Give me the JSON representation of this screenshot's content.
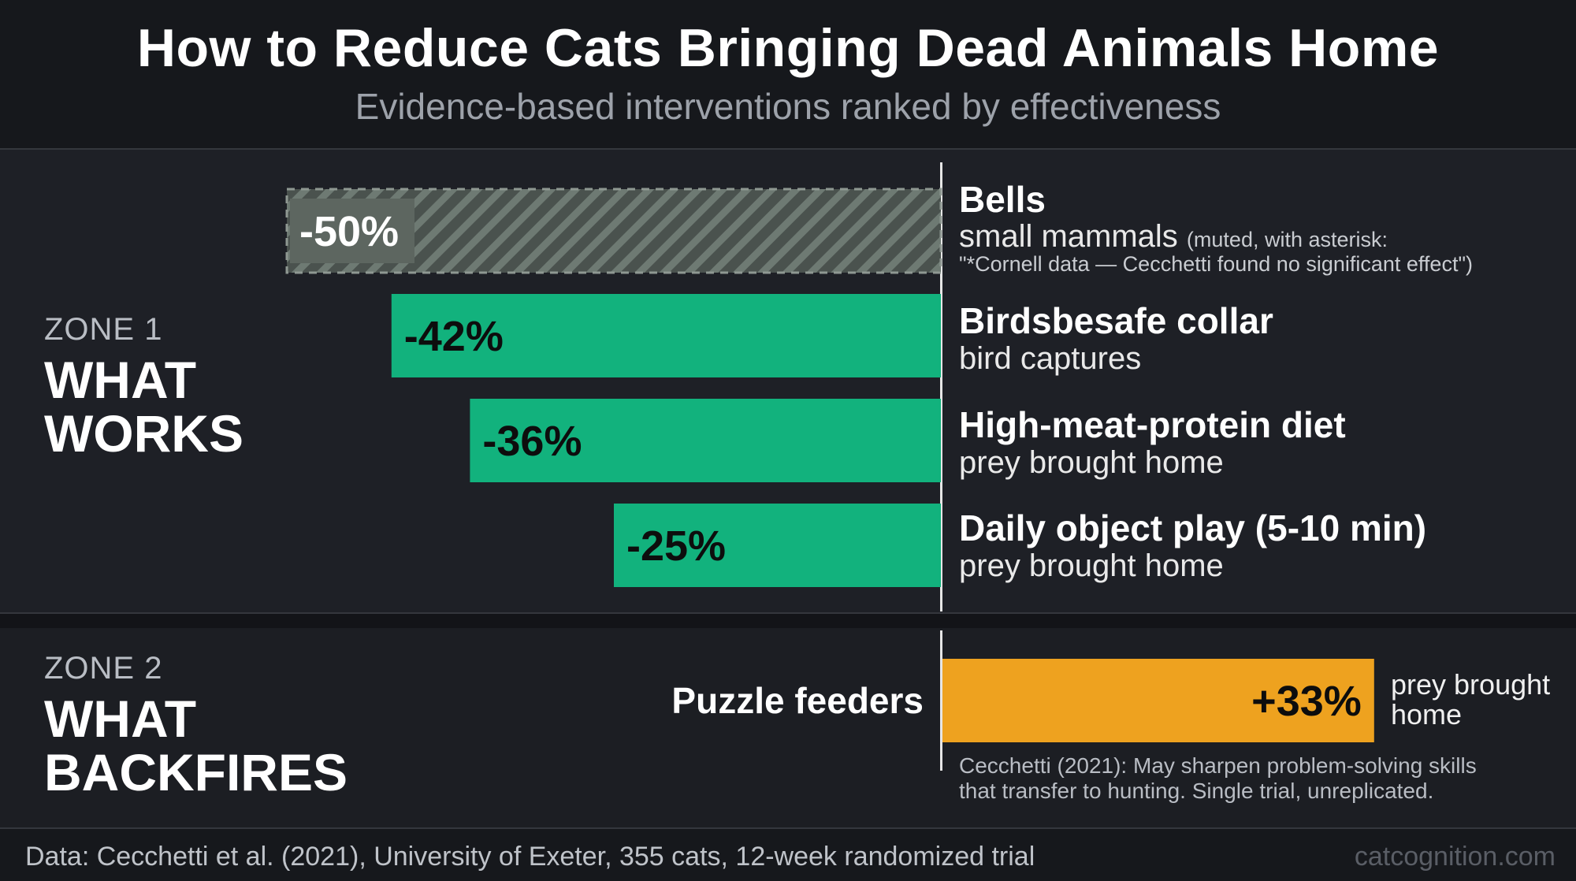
{
  "header": {
    "title": "How to Reduce Cats Bringing Dead Animals Home",
    "subtitle": "Evidence-based interventions ranked by effectiveness"
  },
  "zones": [
    {
      "number": "ZONE 1",
      "name_line1": "WHAT",
      "name_line2": "WORKS"
    },
    {
      "number": "ZONE 2",
      "name_line1": "WHAT",
      "name_line2": "BACKFIRES"
    }
  ],
  "chart_data": {
    "type": "bar",
    "orientation": "horizontal-diverging",
    "baseline": 0,
    "xlim": [
      -56,
      39
    ],
    "categories": [
      "Bells",
      "Birdsbesafe collar",
      "High-meat-protein diet",
      "Daily object play (5-10 min)",
      "Puzzle feeders"
    ],
    "values": [
      -50,
      -42,
      -36,
      -25,
      33
    ],
    "value_labels": [
      "-50%",
      "-42%",
      "-36%",
      "-25%",
      "+33%"
    ],
    "metrics": [
      "small mammals",
      "bird captures",
      "prey brought home",
      "prey brought home",
      "prey brought home"
    ],
    "zones": [
      "WHAT WORKS",
      "WHAT WORKS",
      "WHAT WORKS",
      "WHAT WORKS",
      "WHAT BACKFIRES"
    ],
    "styles": [
      "muted-hatched",
      "solid",
      "solid",
      "solid",
      "solid"
    ],
    "bell_note_open": "(muted, with asterisk:",
    "bell_note_text": "\"*Cornell data — Cecchetti found no significant effect\")",
    "puzzle_note": "Cecchetti (2021): May sharpen problem-solving skills that transfer to hunting. Single trial, unreplicated.",
    "colors": {
      "works": "#12b27d",
      "works_muted": "#5d6660",
      "backfires": "#eea21f",
      "value_text_dark": "#0d0d0d",
      "value_text_light": "#ffffff"
    }
  },
  "footer": {
    "source": "Data: Cecchetti et al. (2021), University of Exeter, 355 cats, 12-week randomized trial",
    "brand": "catcognition.com"
  }
}
